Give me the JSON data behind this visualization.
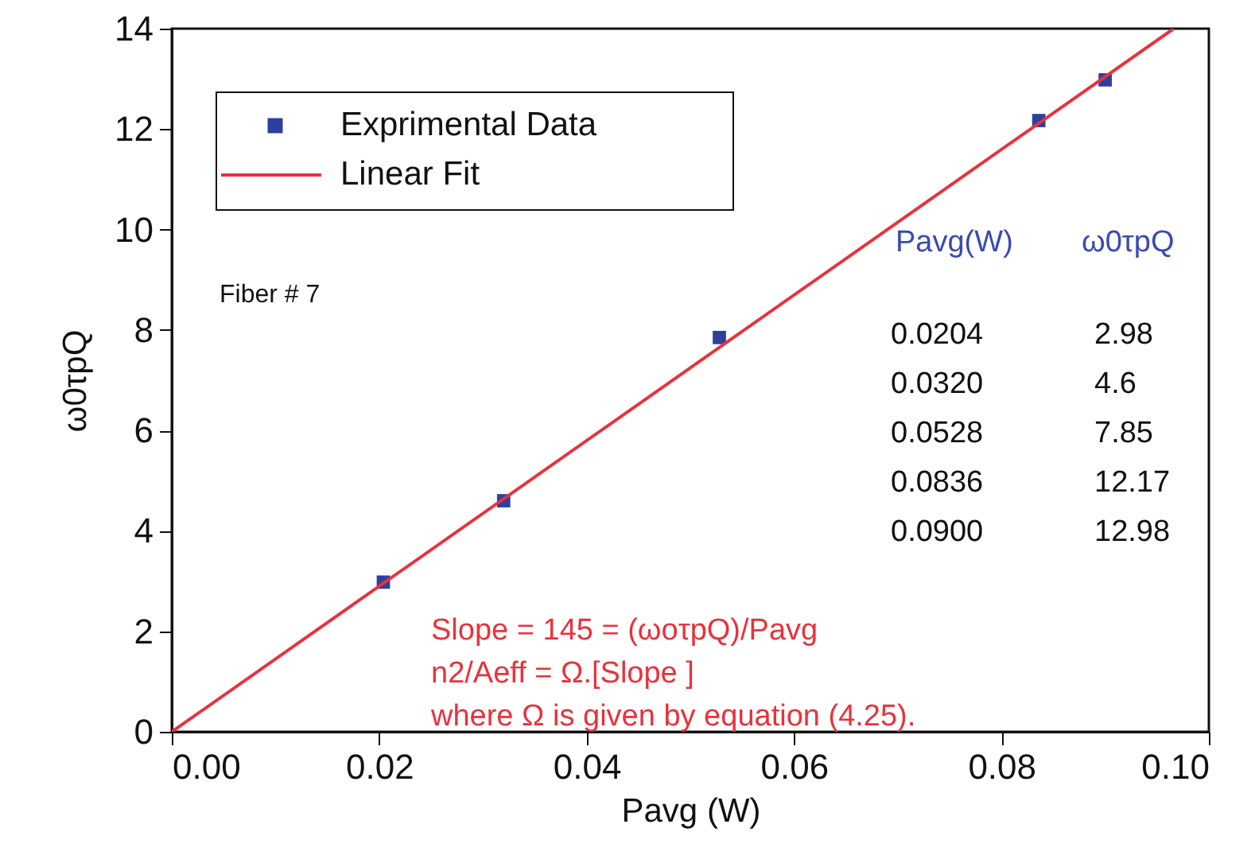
{
  "chart_data": {
    "type": "scatter",
    "xlabel": "Pavg (W)",
    "ylabel": "ω0τpQ",
    "xlim": [
      0,
      0.1
    ],
    "ylim": [
      0,
      14
    ],
    "xticks": [
      {
        "value": 0,
        "label": "0.00"
      },
      {
        "value": 0.02,
        "label": "0.02"
      },
      {
        "value": 0.04,
        "label": "0.04"
      },
      {
        "value": 0.06,
        "label": "0.06"
      },
      {
        "value": 0.08,
        "label": "0.08"
      },
      {
        "value": 0.1,
        "label": "0.10"
      }
    ],
    "yticks": [
      0,
      2,
      4,
      6,
      8,
      10,
      12,
      14
    ],
    "grid": false,
    "legend": "top left",
    "annotations": [
      "Fiber # 7",
      "Pavg(W)",
      "ω0τpQ",
      "0.0204",
      "2.98",
      "0.0320",
      "4.6",
      "0.0528",
      "7.85",
      "0.0836",
      "12.17",
      "0.0900",
      "12.98",
      "Slope = 145 = (ωoτpQ)/Pavg",
      "n2/Aeff = Ω.[Slope ]",
      "where Ω is given by equation (4.25)."
    ],
    "series": [
      {
        "name": "Exprimental Data",
        "marker": "square",
        "color": "#2e3f9e",
        "x": [
          0.0204,
          0.032,
          0.0528,
          0.0836,
          0.09
        ],
        "values": [
          2.98,
          4.6,
          7.85,
          12.17,
          12.98
        ]
      },
      {
        "name": "Linear Fit",
        "type": "line",
        "line_style": "solid",
        "color": "#e8323c",
        "x": [
          0,
          0.0966
        ],
        "values": [
          0,
          14
        ]
      }
    ]
  }
}
